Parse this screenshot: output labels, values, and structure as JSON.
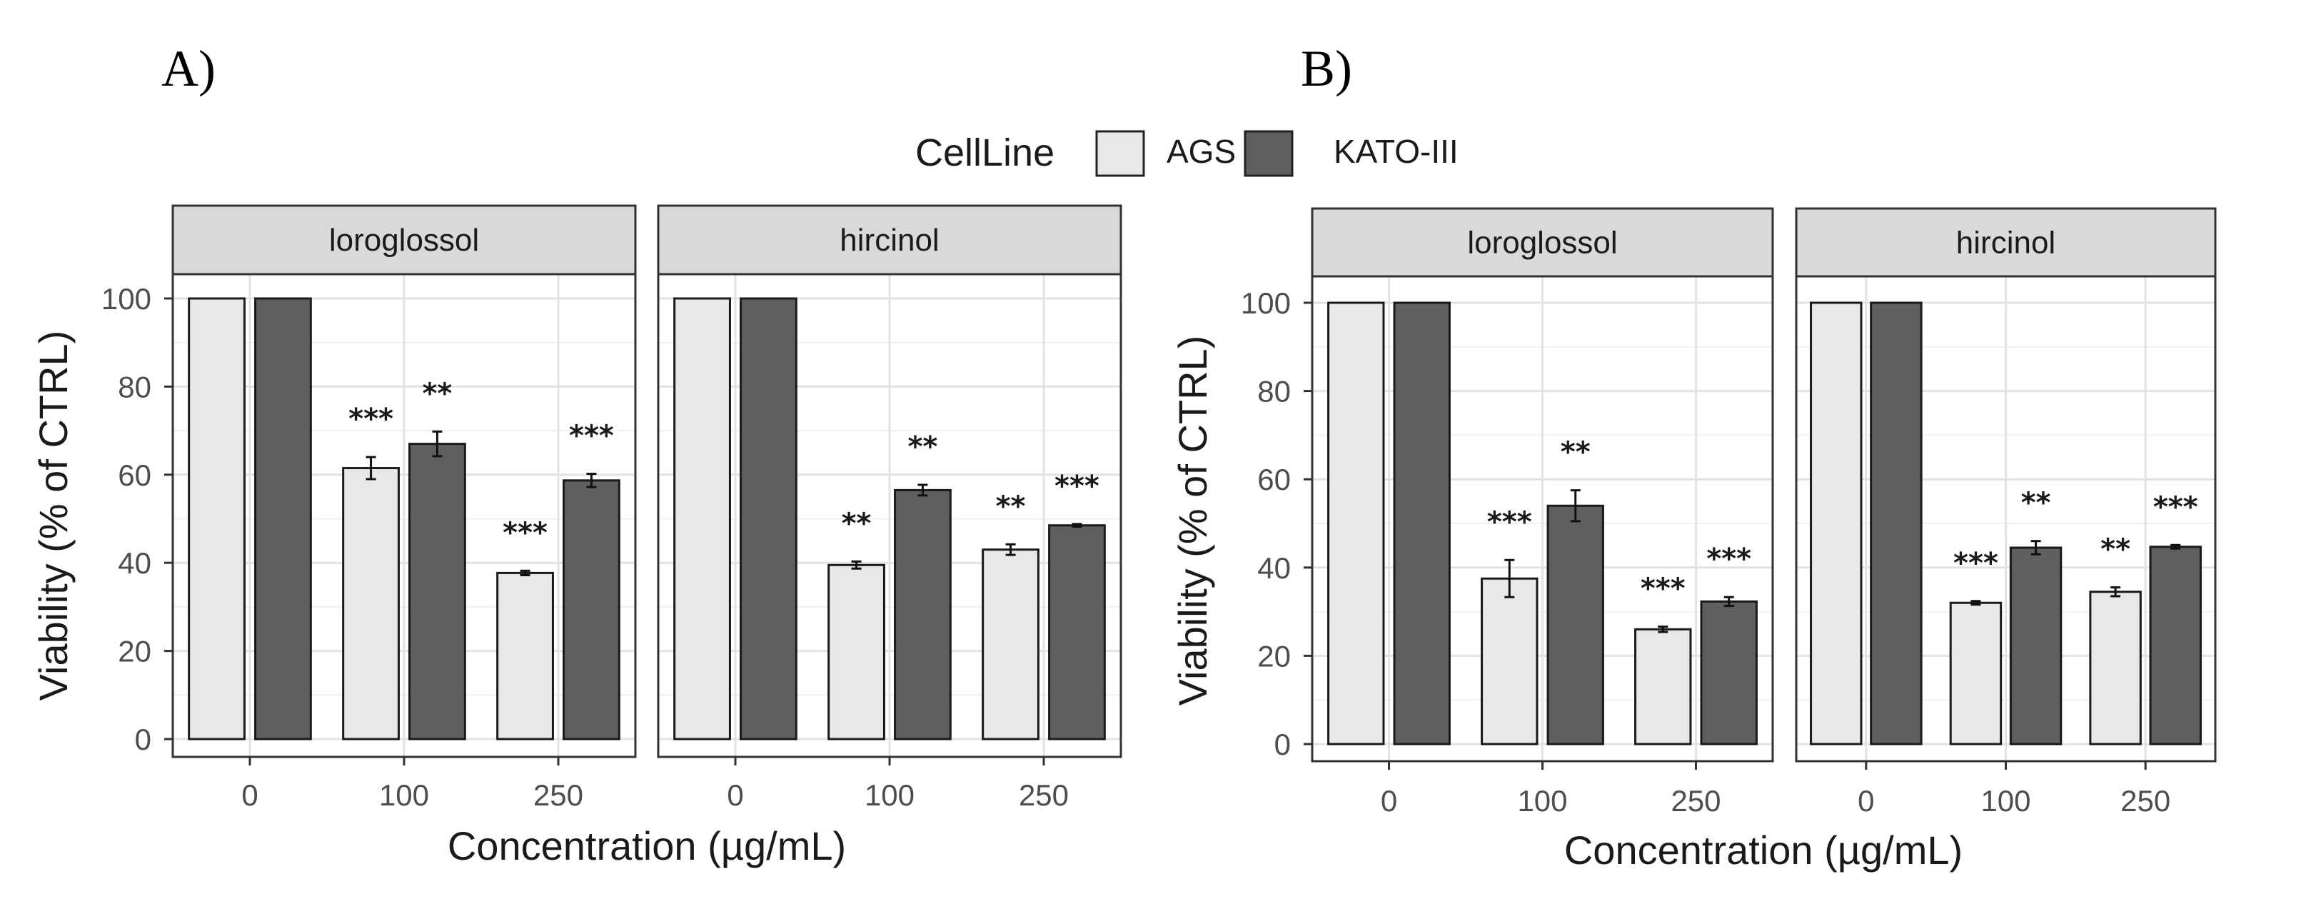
{
  "legend": {
    "title": "CellLine",
    "entries": [
      {
        "name": "AGS",
        "color": "#e8e8e8"
      },
      {
        "name": "KATO-III",
        "color": "#5f5f5f"
      }
    ]
  },
  "chart_data": [
    {
      "panel_label": "A)",
      "type": "bar",
      "xlabel": "Concentration (µg/mL)",
      "ylabel": "Viability (% of CTRL)",
      "ylim": [
        0,
        105
      ],
      "yticks": [
        0,
        20,
        40,
        60,
        80,
        100
      ],
      "categories": [
        "0",
        "100",
        "250"
      ],
      "facets": [
        {
          "title": "loroglossol",
          "series": [
            {
              "name": "AGS",
              "values": [
                100,
                61.5,
                37.7
              ],
              "errors": [
                0,
                2.5,
                0.5
              ],
              "signif": [
                "",
                "***",
                "***"
              ]
            },
            {
              "name": "KATO-III",
              "values": [
                100,
                67,
                58.7
              ],
              "errors": [
                0,
                2.8,
                1.5
              ],
              "signif": [
                "",
                "**",
                "***"
              ]
            }
          ]
        },
        {
          "title": "hircinol",
          "series": [
            {
              "name": "AGS",
              "values": [
                100,
                39.5,
                43
              ],
              "errors": [
                0,
                0.8,
                1.2
              ],
              "signif": [
                "",
                "**",
                "**"
              ]
            },
            {
              "name": "KATO-III",
              "values": [
                100,
                56.5,
                48.5
              ],
              "errors": [
                0,
                1.2,
                0.3
              ],
              "signif": [
                "",
                "**",
                "***"
              ]
            }
          ]
        }
      ]
    },
    {
      "panel_label": "B)",
      "type": "bar",
      "xlabel": "Concentration (µg/mL)",
      "ylabel": "Viability (% of CTRL)",
      "ylim": [
        0,
        105
      ],
      "yticks": [
        0,
        20,
        40,
        60,
        80,
        100
      ],
      "categories": [
        "0",
        "100",
        "250"
      ],
      "facets": [
        {
          "title": "loroglossol",
          "series": [
            {
              "name": "AGS",
              "values": [
                100,
                37.5,
                26
              ],
              "errors": [
                0,
                4.2,
                0.6
              ],
              "signif": [
                "",
                "***",
                "***"
              ]
            },
            {
              "name": "KATO-III",
              "values": [
                100,
                54,
                32.3
              ],
              "errors": [
                0,
                3.5,
                1
              ],
              "signif": [
                "",
                "**",
                "***"
              ]
            }
          ]
        },
        {
          "title": "hircinol",
          "series": [
            {
              "name": "AGS",
              "values": [
                100,
                32,
                34.5
              ],
              "errors": [
                0,
                0.4,
                1
              ],
              "signif": [
                "",
                "***",
                "**"
              ]
            },
            {
              "name": "KATO-III",
              "values": [
                100,
                44.5,
                44.7
              ],
              "errors": [
                0,
                1.5,
                0.4
              ],
              "signif": [
                "",
                "**",
                "***"
              ]
            }
          ]
        }
      ]
    }
  ]
}
